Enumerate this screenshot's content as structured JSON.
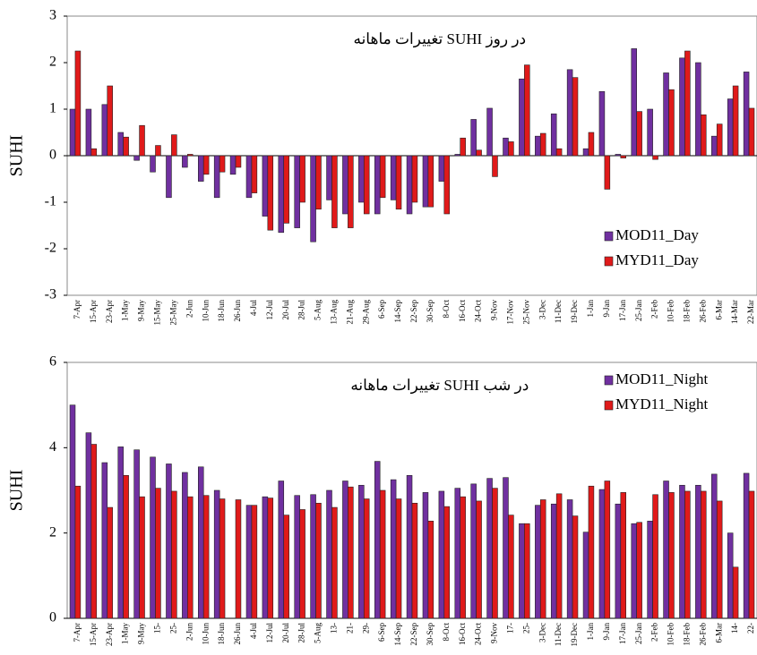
{
  "chart_data": [
    {
      "type": "bar",
      "title": "تغییرات ماهانه SUHI در روز",
      "y_label": "SUHI",
      "categories": [
        "7-Apr",
        "15-Apr",
        "23-Apr",
        "1-May",
        "9-May",
        "15-May",
        "25-May",
        "2-Jun",
        "10-Jun",
        "18-Jun",
        "26-Jun",
        "4-Jul",
        "12-Jul",
        "20-Jul",
        "28-Jul",
        "5-Aug",
        "13-Aug",
        "21-Aug",
        "29-Aug",
        "6-Sep",
        "14-Sep",
        "22-Sep",
        "30-Sep",
        "8-Oct",
        "16-Oct",
        "24-Oct",
        "9-Nov",
        "17-Nov",
        "25-Nov",
        "3-Dec",
        "11-Dec",
        "19-Dec",
        "1-Jan",
        "9-Jan",
        "17-Jan",
        "25-Jan",
        "2-Feb",
        "10-Feb",
        "18-Feb",
        "26-Feb",
        "6-Mar",
        "14-Mar",
        "22-Mar"
      ],
      "series": [
        {
          "name": "MOD11_Day",
          "color": "#7030a0",
          "values": [
            1.0,
            1.0,
            1.1,
            0.5,
            -0.1,
            -0.35,
            -0.9,
            -0.25,
            -0.55,
            -0.9,
            -0.4,
            -0.9,
            -1.3,
            -1.65,
            -1.55,
            -1.85,
            -0.95,
            -1.25,
            -1.0,
            -1.25,
            -0.95,
            -1.25,
            -1.1,
            -0.55,
            0.03,
            0.78,
            1.02,
            0.38,
            1.65,
            0.42,
            0.9,
            1.85,
            0.15,
            1.38,
            0.03,
            2.3,
            1.0,
            1.78,
            2.1,
            2.0,
            0.42,
            1.22,
            1.8
          ]
        },
        {
          "name": "MYD11_Day",
          "color": "#e01a1a",
          "values": [
            2.25,
            0.15,
            1.5,
            0.4,
            0.65,
            0.22,
            0.45,
            0.03,
            -0.4,
            -0.35,
            -0.25,
            -0.8,
            -1.6,
            -1.45,
            -1.0,
            -1.15,
            -1.55,
            -1.55,
            -1.25,
            -0.9,
            -1.15,
            -1.0,
            -1.1,
            -1.25,
            0.38,
            0.12,
            -0.45,
            0.3,
            1.95,
            0.48,
            0.15,
            1.68,
            0.5,
            -0.72,
            -0.05,
            0.95,
            -0.08,
            1.42,
            2.25,
            0.88,
            0.68,
            1.5,
            1.02
          ]
        }
      ],
      "ylim": [
        -3,
        3
      ],
      "yticks": [
        -3,
        -2,
        -1,
        0,
        1,
        2,
        3
      ],
      "legend": "lower right"
    },
    {
      "type": "bar",
      "title": "تغییرات ماهانه SUHI در شب",
      "y_label": "SUHI",
      "categories": [
        "7-Apr",
        "15-Apr",
        "23-Apr",
        "1-May",
        "9-May",
        "15-",
        "25-",
        "2-Jun",
        "10-Jun",
        "18-Jun",
        "26-Jun",
        "4-Jul",
        "12-Jul",
        "20-Jul",
        "28-Jul",
        "5-Aug",
        "13-",
        "21-",
        "29-",
        "6-Sep",
        "14-Sep",
        "22-Sep",
        "30-Sep",
        "8-Oct",
        "16-Oct",
        "24-Oct",
        "9-Nov",
        "17-",
        "25-",
        "3-Dec",
        "11-Dec",
        "19-Dec",
        "1-Jan",
        "9-Jan",
        "17-Jan",
        "25-Jan",
        "2-Feb",
        "10-Feb",
        "18-Feb",
        "26-Feb",
        "6-Mar",
        "14-",
        "22-"
      ],
      "series": [
        {
          "name": "MOD11_Night",
          "color": "#7030a0",
          "values": [
            5.0,
            4.35,
            3.65,
            4.02,
            3.95,
            3.78,
            3.62,
            3.42,
            3.55,
            3.0,
            null,
            2.65,
            2.85,
            3.22,
            2.88,
            2.9,
            3.0,
            3.22,
            3.12,
            3.68,
            3.25,
            3.35,
            2.95,
            2.98,
            3.05,
            3.15,
            3.28,
            3.3,
            2.22,
            2.65,
            2.68,
            2.78,
            2.02,
            3.02,
            2.68,
            2.22,
            2.28,
            3.22,
            3.12,
            3.12,
            3.38,
            2.0,
            3.4
          ]
        },
        {
          "name": "MYD11_Night",
          "color": "#e01a1a",
          "values": [
            3.1,
            4.08,
            2.6,
            3.35,
            2.85,
            3.05,
            2.98,
            2.85,
            2.88,
            2.8,
            2.78,
            2.65,
            2.82,
            2.42,
            2.55,
            2.7,
            2.6,
            3.08,
            2.8,
            3.0,
            2.8,
            2.7,
            2.28,
            2.62,
            2.85,
            2.75,
            3.05,
            2.42,
            2.22,
            2.78,
            2.92,
            2.4,
            3.1,
            3.22,
            2.95,
            2.25,
            2.9,
            2.95,
            2.98,
            2.98,
            2.75,
            1.2,
            2.98
          ]
        }
      ],
      "ylim": [
        0,
        6
      ],
      "yticks": [
        0,
        2,
        4,
        6
      ],
      "legend": "upper right"
    }
  ]
}
